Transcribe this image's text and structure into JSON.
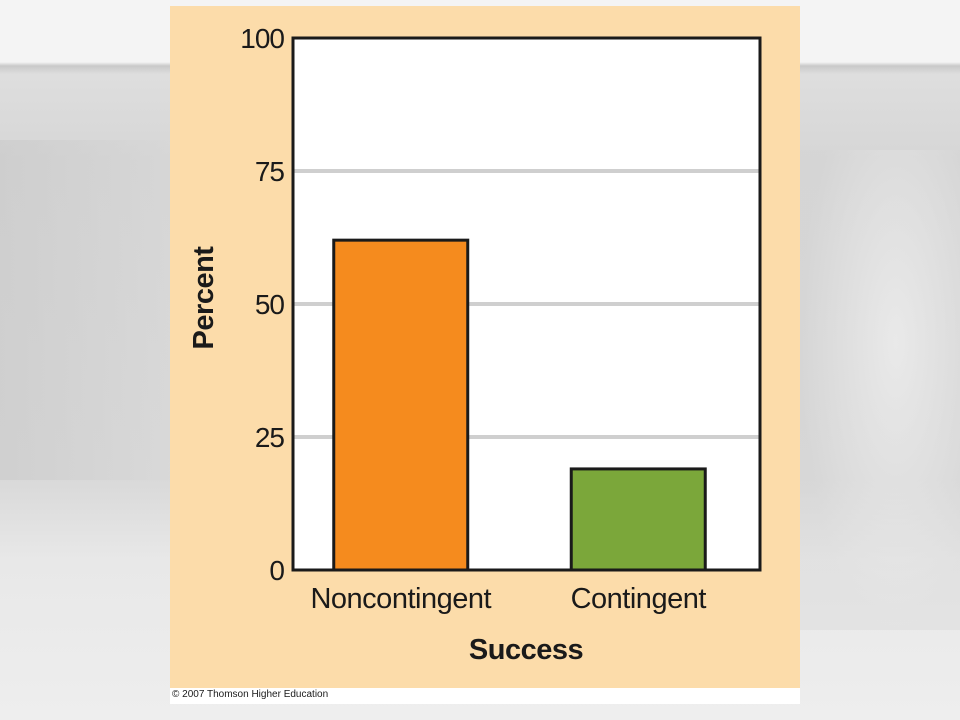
{
  "copyright": "© 2007 Thomson Higher Education",
  "chart_data": {
    "type": "bar",
    "categories": [
      "Noncontingent",
      "Contingent"
    ],
    "values": [
      62,
      19
    ],
    "colors": [
      "#f58b1e",
      "#7ba73a"
    ],
    "xlabel": "Success",
    "ylabel": "Percent",
    "ylim": [
      0,
      100
    ],
    "yticks": [
      0,
      25,
      50,
      75,
      100
    ],
    "grid": true,
    "panel_color": "#fcdcaa",
    "plot_color": "#ffffff",
    "grid_color": "#cfcfcf"
  }
}
